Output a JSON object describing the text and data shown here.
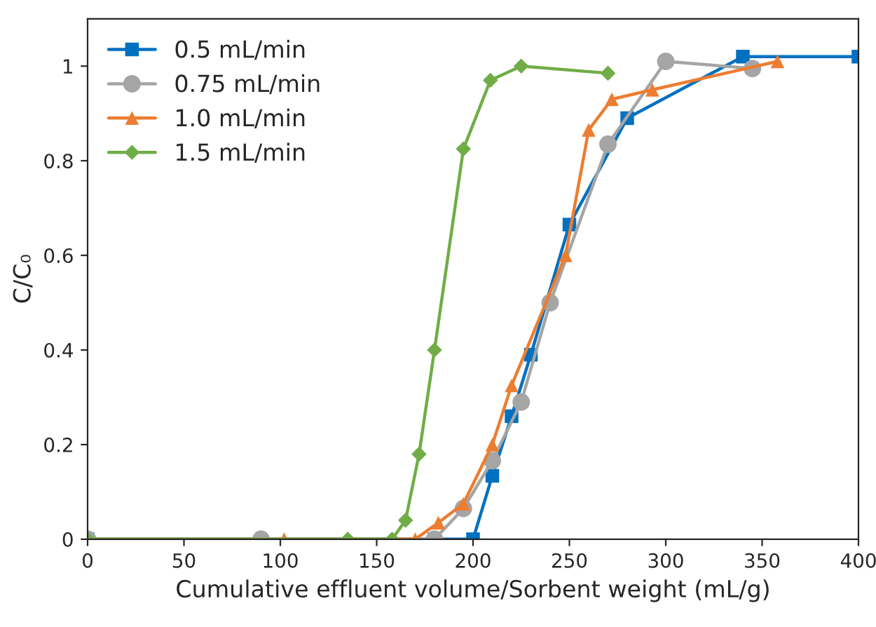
{
  "chart_data": {
    "type": "line",
    "xlabel": "Cumulative effluent volume/Sorbent weight (mL/g)",
    "ylabel": "C/C₀",
    "xlim": [
      0,
      400
    ],
    "xticks": [
      0,
      50,
      100,
      150,
      200,
      250,
      300,
      350,
      400
    ],
    "ylim": [
      0,
      1.1
    ],
    "yticks": [
      0,
      0.2,
      0.4,
      0.6,
      0.8,
      1
    ],
    "grid": false,
    "legend": "top left",
    "line_style": "solid",
    "series": [
      {
        "name": "0.5 mL/min",
        "color": "#0070c0",
        "marker": "square",
        "x": [
          0,
          180,
          200,
          210,
          220,
          230,
          250,
          280,
          340,
          400
        ],
        "values": [
          0,
          0,
          0,
          0.134,
          0.26,
          0.39,
          0.665,
          0.89,
          1.02,
          1.02
        ]
      },
      {
        "name": "0.75 mL/min",
        "color": "#a5a5a5",
        "marker": "circle",
        "x": [
          0,
          90,
          180,
          195,
          210,
          225,
          240,
          270,
          300,
          345
        ],
        "values": [
          0,
          0,
          0,
          0.065,
          0.166,
          0.29,
          0.5,
          0.835,
          1.01,
          0.995
        ]
      },
      {
        "name": "1.0 mL/min",
        "color": "#ed7d31",
        "marker": "triangle",
        "x": [
          0,
          102,
          170,
          182,
          195,
          210,
          220,
          248,
          260,
          272,
          293,
          358
        ],
        "values": [
          0,
          0,
          0,
          0.035,
          0.075,
          0.2,
          0.325,
          0.6,
          0.865,
          0.93,
          0.95,
          1.01
        ]
      },
      {
        "name": "1.5 mL/min",
        "color": "#70ad47",
        "marker": "diamond",
        "x": [
          0,
          135,
          158,
          165,
          172,
          180,
          195,
          209,
          225,
          270
        ],
        "values": [
          0,
          0,
          0,
          0.04,
          0.18,
          0.4,
          0.825,
          0.97,
          1.0,
          0.985
        ]
      }
    ]
  }
}
